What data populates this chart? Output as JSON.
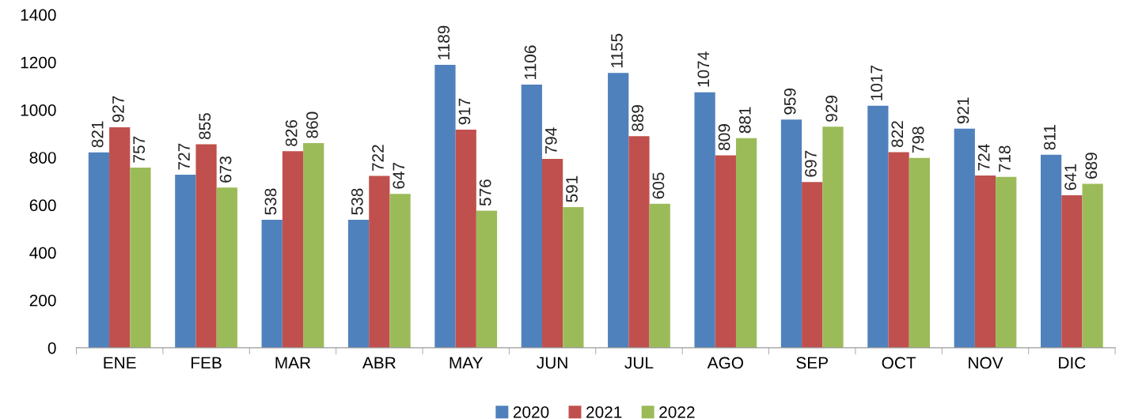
{
  "chart_data": {
    "type": "bar",
    "categories": [
      "ENE",
      "FEB",
      "MAR",
      "ABR",
      "MAY",
      "JUN",
      "JUL",
      "AGO",
      "SEP",
      "OCT",
      "NOV",
      "DIC"
    ],
    "series": [
      {
        "name": "2020",
        "color": "#4f81bd",
        "values": [
          821,
          727,
          538,
          538,
          1189,
          1106,
          1155,
          1074,
          959,
          1017,
          921,
          811
        ]
      },
      {
        "name": "2021",
        "color": "#c0504d",
        "values": [
          927,
          855,
          826,
          722,
          917,
          794,
          889,
          809,
          697,
          822,
          724,
          641
        ]
      },
      {
        "name": "2022",
        "color": "#9bbb59",
        "values": [
          757,
          673,
          860,
          647,
          576,
          591,
          605,
          881,
          929,
          798,
          718,
          689
        ]
      }
    ],
    "ylim": [
      0,
      1400
    ],
    "yticks": [
      0,
      200,
      400,
      600,
      800,
      1000,
      1200,
      1400
    ],
    "data_labels": true,
    "legend": "bottom",
    "grid": false
  }
}
